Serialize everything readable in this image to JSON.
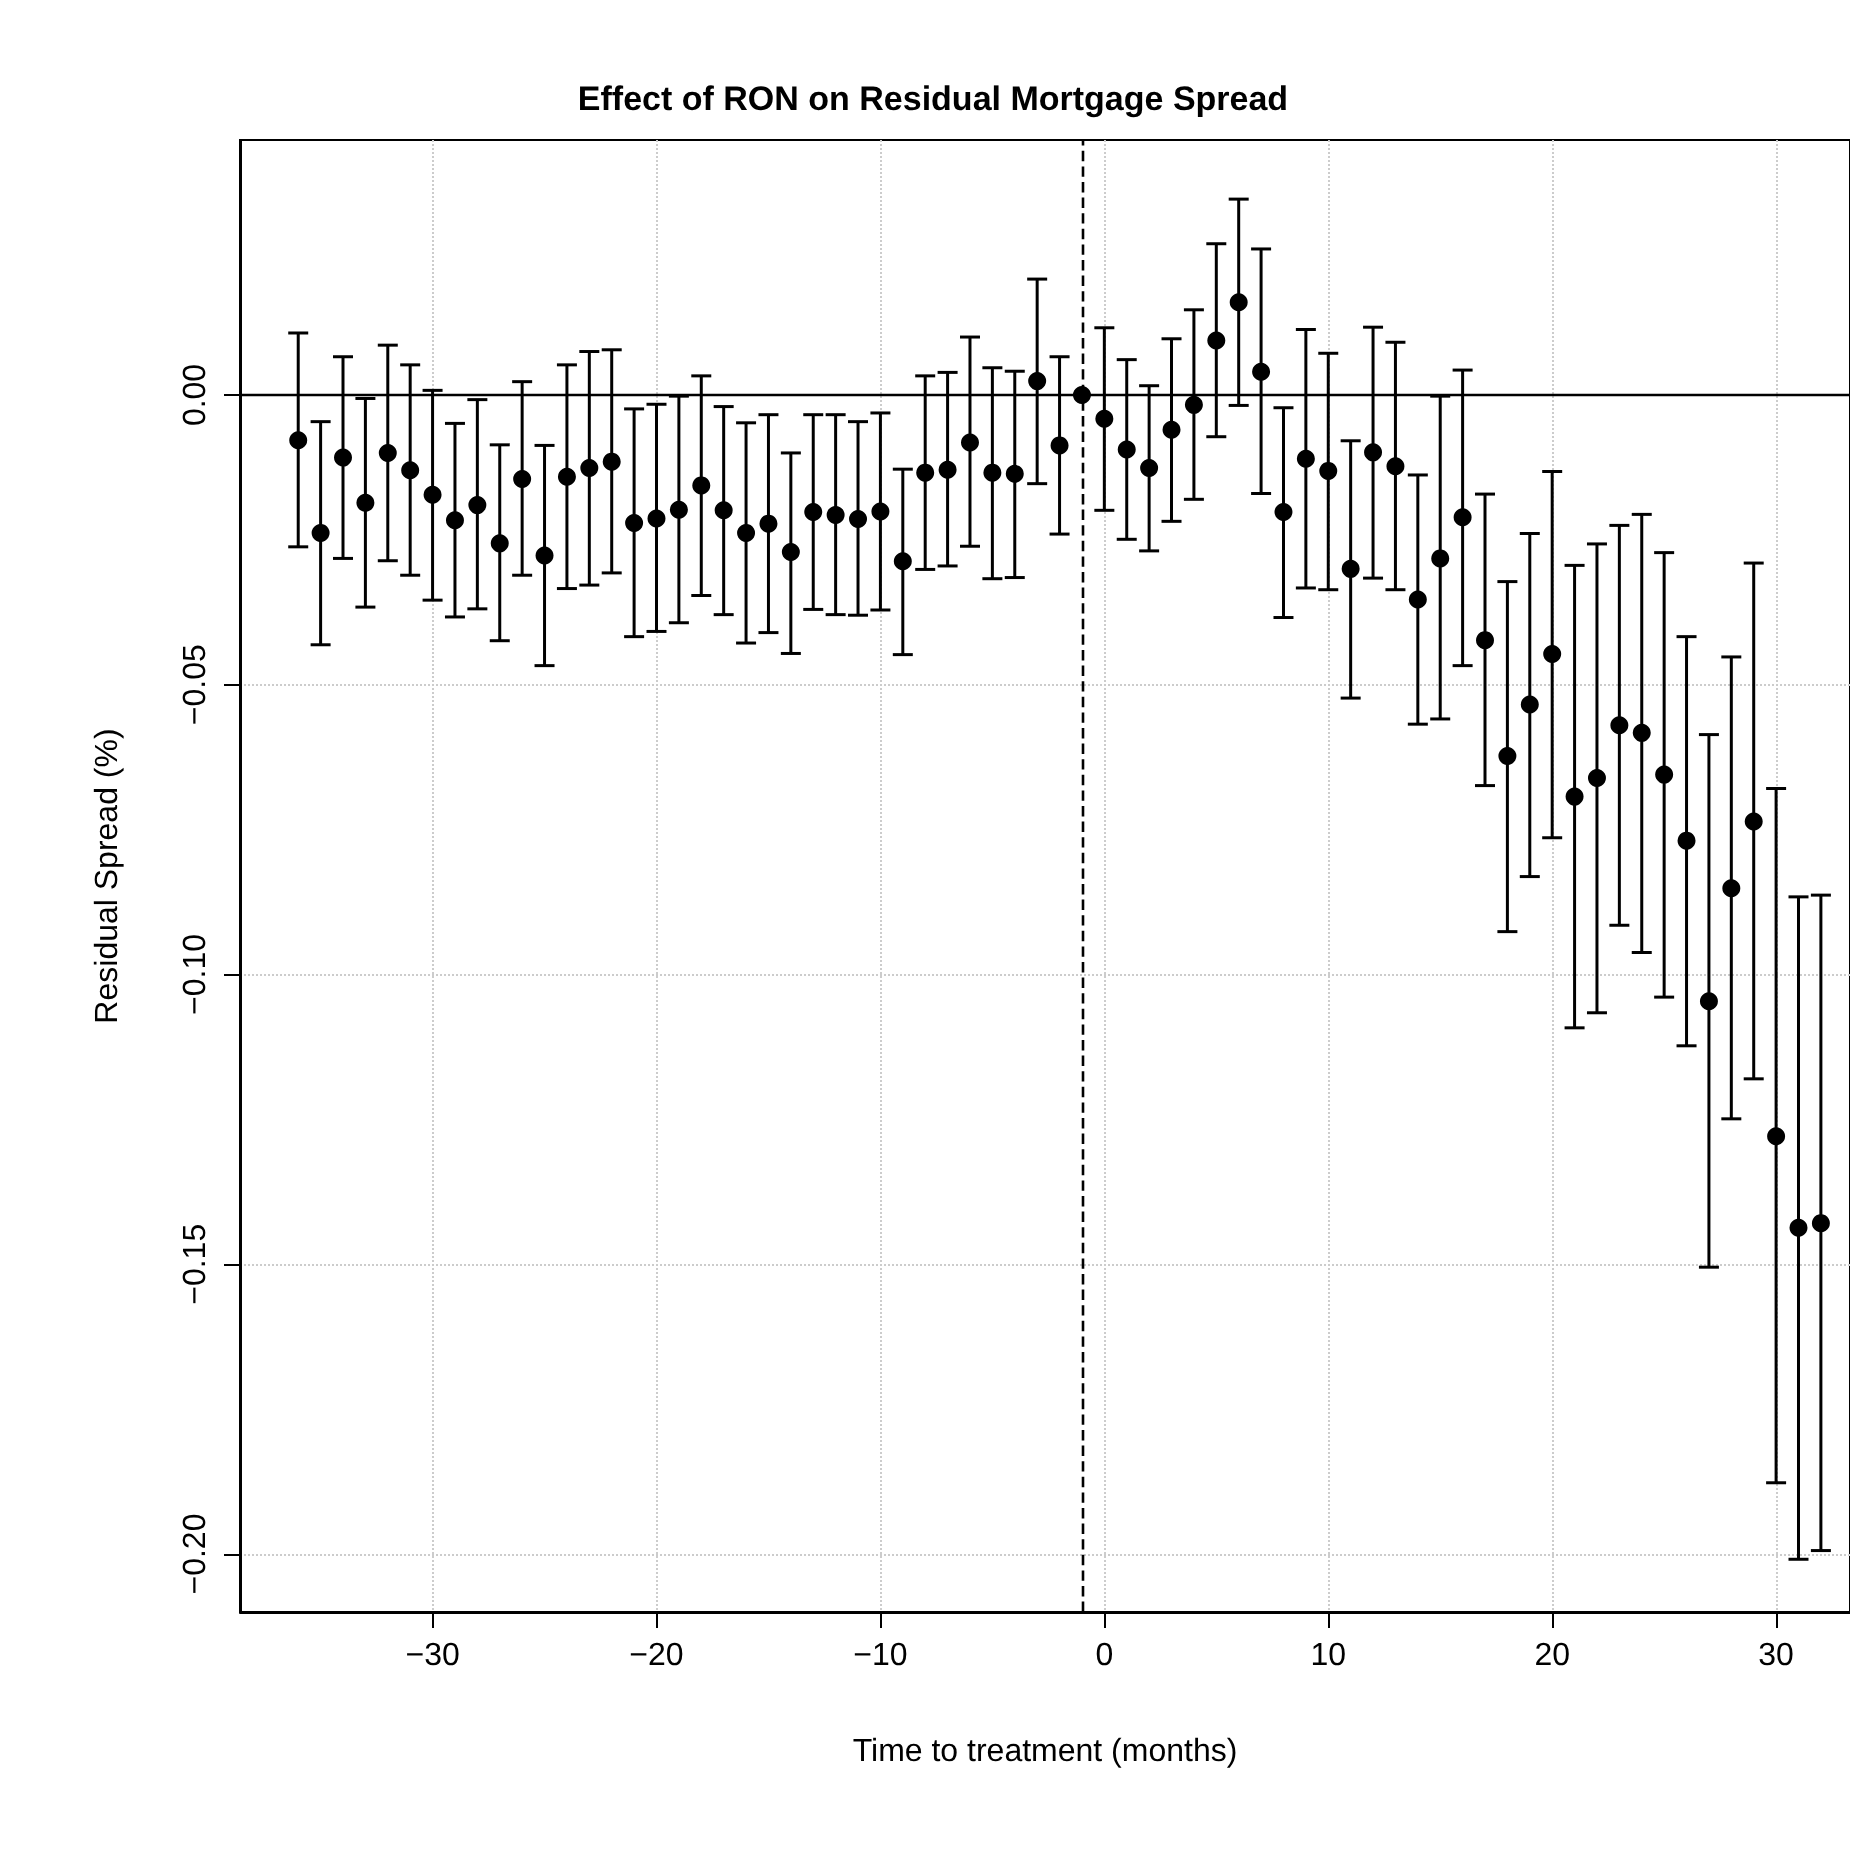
{
  "chart_data": {
    "type": "scatter",
    "title": "Effect of RON on Residual Mortgage Spread",
    "xlabel": "Time to treatment (months)",
    "ylabel": "Residual Spread (%)",
    "x": [
      -36,
      -35,
      -34,
      -33,
      -32,
      -31,
      -30,
      -29,
      -28,
      -27,
      -26,
      -25,
      -24,
      -23,
      -22,
      -21,
      -20,
      -19,
      -18,
      -17,
      -16,
      -15,
      -14,
      -13,
      -12,
      -11,
      -10,
      -9,
      -8,
      -7,
      -6,
      -5,
      -4,
      -3,
      -2,
      -1,
      0,
      1,
      2,
      3,
      4,
      5,
      6,
      7,
      8,
      9,
      10,
      11,
      12,
      13,
      14,
      15,
      16,
      17,
      18,
      19,
      20,
      21,
      22,
      23,
      24,
      25,
      26,
      27,
      28,
      29,
      30,
      31,
      32
    ],
    "values": [
      -0.0078,
      -0.0238,
      -0.0108,
      -0.0186,
      -0.01,
      -0.013,
      -0.0172,
      -0.0216,
      -0.019,
      -0.0256,
      -0.0145,
      -0.0277,
      -0.0141,
      -0.0126,
      -0.0115,
      -0.0221,
      -0.0213,
      -0.0198,
      -0.0156,
      -0.0199,
      -0.0238,
      -0.0222,
      -0.0271,
      -0.0202,
      -0.0207,
      -0.0214,
      -0.0201,
      -0.0287,
      -0.0134,
      -0.0129,
      -0.0082,
      -0.0134,
      -0.0136,
      0.0024,
      -0.0087,
      0,
      -0.0041,
      -0.0094,
      -0.0126,
      -0.006,
      -0.0017,
      0.0094,
      0.016,
      0.004,
      -0.0202,
      -0.011,
      -0.0131,
      -0.03,
      -0.0099,
      -0.0123,
      -0.0353,
      -0.0282,
      -0.0211,
      -0.0423,
      -0.0623,
      -0.0534,
      -0.0447,
      -0.0693,
      -0.0661,
      -0.057,
      -0.0583,
      -0.0655,
      -0.0769,
      -0.1046,
      -0.0851,
      -0.0736,
      -0.1279,
      -0.1437,
      -0.1429
    ],
    "errors": [
      [
        -0.0262,
        0.0107
      ],
      [
        -0.0431,
        -0.0046
      ],
      [
        -0.0282,
        0.0066
      ],
      [
        -0.0366,
        -0.0006
      ],
      [
        -0.0286,
        0.0086
      ],
      [
        -0.0311,
        0.0052
      ],
      [
        -0.0354,
        0.0008
      ],
      [
        -0.0383,
        -0.0049
      ],
      [
        -0.0369,
        -0.0008
      ],
      [
        -0.0424,
        -0.0086
      ],
      [
        -0.0311,
        0.0023
      ],
      [
        -0.0467,
        -0.0087
      ],
      [
        -0.0334,
        0.0052
      ],
      [
        -0.0328,
        0.0075
      ],
      [
        -0.0307,
        0.0078
      ],
      [
        -0.0417,
        -0.0024
      ],
      [
        -0.0408,
        -0.0016
      ],
      [
        -0.0393,
        -0.0002
      ],
      [
        -0.0346,
        0.0033
      ],
      [
        -0.0379,
        -0.002
      ],
      [
        -0.0428,
        -0.0048
      ],
      [
        -0.041,
        -0.0034
      ],
      [
        -0.0446,
        -0.01
      ],
      [
        -0.037,
        -0.0034
      ],
      [
        -0.0379,
        -0.0034
      ],
      [
        -0.038,
        -0.0046
      ],
      [
        -0.0371,
        -0.0031
      ],
      [
        -0.0448,
        -0.0128
      ],
      [
        -0.0301,
        0.0033
      ],
      [
        -0.0295,
        0.0039
      ],
      [
        -0.0261,
        0.01
      ],
      [
        -0.0317,
        0.0047
      ],
      [
        -0.0315,
        0.0041
      ],
      [
        -0.0153,
        0.02
      ],
      [
        -0.024,
        0.0066
      ],
      null,
      [
        -0.0199,
        0.0116
      ],
      [
        -0.0249,
        0.0061
      ],
      [
        -0.0269,
        0.0016
      ],
      [
        -0.0218,
        0.0097
      ],
      [
        -0.018,
        0.0147
      ],
      [
        -0.0072,
        0.0261
      ],
      [
        -0.0018,
        0.0338
      ],
      [
        -0.017,
        0.0252
      ],
      [
        -0.0384,
        -0.0022
      ],
      [
        -0.0333,
        0.0113
      ],
      [
        -0.0336,
        0.0072
      ],
      [
        -0.0523,
        -0.0079
      ],
      [
        -0.0316,
        0.0117
      ],
      [
        -0.0336,
        0.0091
      ],
      [
        -0.0568,
        -0.0138
      ],
      [
        -0.0559,
        -0.0002
      ],
      [
        -0.0467,
        0.0043
      ],
      [
        -0.0674,
        -0.0171
      ],
      [
        -0.0926,
        -0.0322
      ],
      [
        -0.0831,
        -0.0239
      ],
      [
        -0.0764,
        -0.0132
      ],
      [
        -0.1092,
        -0.0294
      ],
      [
        -0.1066,
        -0.0257
      ],
      [
        -0.0915,
        -0.0225
      ],
      [
        -0.0962,
        -0.0206
      ],
      [
        -0.1039,
        -0.0272
      ],
      [
        -0.1123,
        -0.0417
      ],
      [
        -0.1505,
        -0.0586
      ],
      [
        -0.1249,
        -0.0452
      ],
      [
        -0.118,
        -0.029
      ],
      [
        -0.1877,
        -0.0679
      ],
      [
        -0.2009,
        -0.0866
      ],
      [
        -0.1994,
        -0.0863
      ]
    ],
    "color": "#000000",
    "marker": "circle",
    "xlim": [
      -38.6,
      33.3
    ],
    "xticks": [
      {
        "value": -30,
        "label": "−30"
      },
      {
        "value": -20,
        "label": "−20"
      },
      {
        "value": -10,
        "label": "−10"
      },
      0,
      10,
      20,
      30
    ],
    "ylim": [
      -0.21,
      0.044
    ],
    "yticks": [
      {
        "value": -0.2,
        "label": "−0.20"
      },
      {
        "value": -0.15,
        "label": "−0.15"
      },
      {
        "value": -0.1,
        "label": "−0.10"
      },
      {
        "value": -0.05,
        "label": "−0.05"
      },
      {
        "value": 0,
        "label": "0.00"
      }
    ],
    "grid": true,
    "ref_lines": [
      {
        "axis": "y",
        "value": 0,
        "line_style": "solid",
        "color": "#000000"
      },
      {
        "axis": "x",
        "value": -1,
        "line_style": "dashed",
        "color": "#000000"
      }
    ]
  }
}
